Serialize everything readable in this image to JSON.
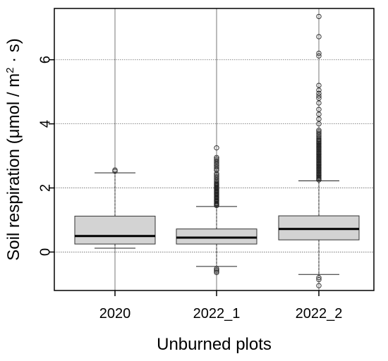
{
  "chart_data": {
    "type": "box",
    "xlabel": "Unburned plots",
    "ylabel_main": "Soil respiration (μmol / m",
    "ylabel_sup": "2",
    "ylabel_tail": " · s)",
    "categories": [
      "2020",
      "2022_1",
      "2022_2"
    ],
    "ylim": [
      -1.2,
      7.6
    ],
    "yticks": [
      0,
      2,
      4,
      6
    ],
    "grid": true,
    "boxes": [
      {
        "label": "2020",
        "whisker_low": 0.12,
        "q1": 0.25,
        "median": 0.5,
        "q3": 1.12,
        "whisker_high": 2.47,
        "outliers": [
          2.52,
          2.56
        ]
      },
      {
        "label": "2022_1",
        "whisker_low": -0.45,
        "q1": 0.25,
        "median": 0.45,
        "q3": 0.72,
        "whisker_high": 1.42,
        "outliers": [
          1.45,
          1.48,
          1.5,
          1.52,
          1.55,
          1.58,
          1.6,
          1.62,
          1.65,
          1.68,
          1.7,
          1.72,
          1.75,
          1.78,
          1.8,
          1.82,
          1.85,
          1.88,
          1.9,
          1.92,
          1.95,
          1.98,
          2.0,
          2.02,
          2.05,
          2.08,
          2.1,
          2.12,
          2.15,
          2.2,
          2.25,
          2.3,
          2.35,
          2.4,
          2.45,
          2.55,
          2.6,
          2.65,
          2.7,
          2.75,
          2.8,
          2.85,
          2.9,
          2.95,
          3.25,
          -0.52,
          -0.56,
          -0.6,
          -0.64
        ]
      },
      {
        "label": "2022_2",
        "whisker_low": -0.7,
        "q1": 0.38,
        "median": 0.72,
        "q3": 1.13,
        "whisker_high": 2.22,
        "outliers": [
          2.25,
          2.28,
          2.31,
          2.34,
          2.37,
          2.4,
          2.43,
          2.46,
          2.49,
          2.52,
          2.55,
          2.58,
          2.61,
          2.64,
          2.67,
          2.7,
          2.73,
          2.76,
          2.79,
          2.82,
          2.85,
          2.88,
          2.91,
          2.94,
          2.97,
          3.0,
          3.03,
          3.06,
          3.09,
          3.12,
          3.15,
          3.18,
          3.21,
          3.24,
          3.27,
          3.3,
          3.33,
          3.36,
          3.39,
          3.42,
          3.45,
          3.48,
          3.51,
          3.55,
          3.6,
          3.65,
          3.7,
          3.75,
          3.8,
          4.0,
          4.15,
          4.3,
          4.45,
          4.65,
          4.8,
          4.87,
          4.95,
          5.05,
          5.2,
          6.12,
          6.2,
          6.72,
          7.35,
          -0.8,
          -0.86,
          -1.05
        ]
      }
    ]
  }
}
